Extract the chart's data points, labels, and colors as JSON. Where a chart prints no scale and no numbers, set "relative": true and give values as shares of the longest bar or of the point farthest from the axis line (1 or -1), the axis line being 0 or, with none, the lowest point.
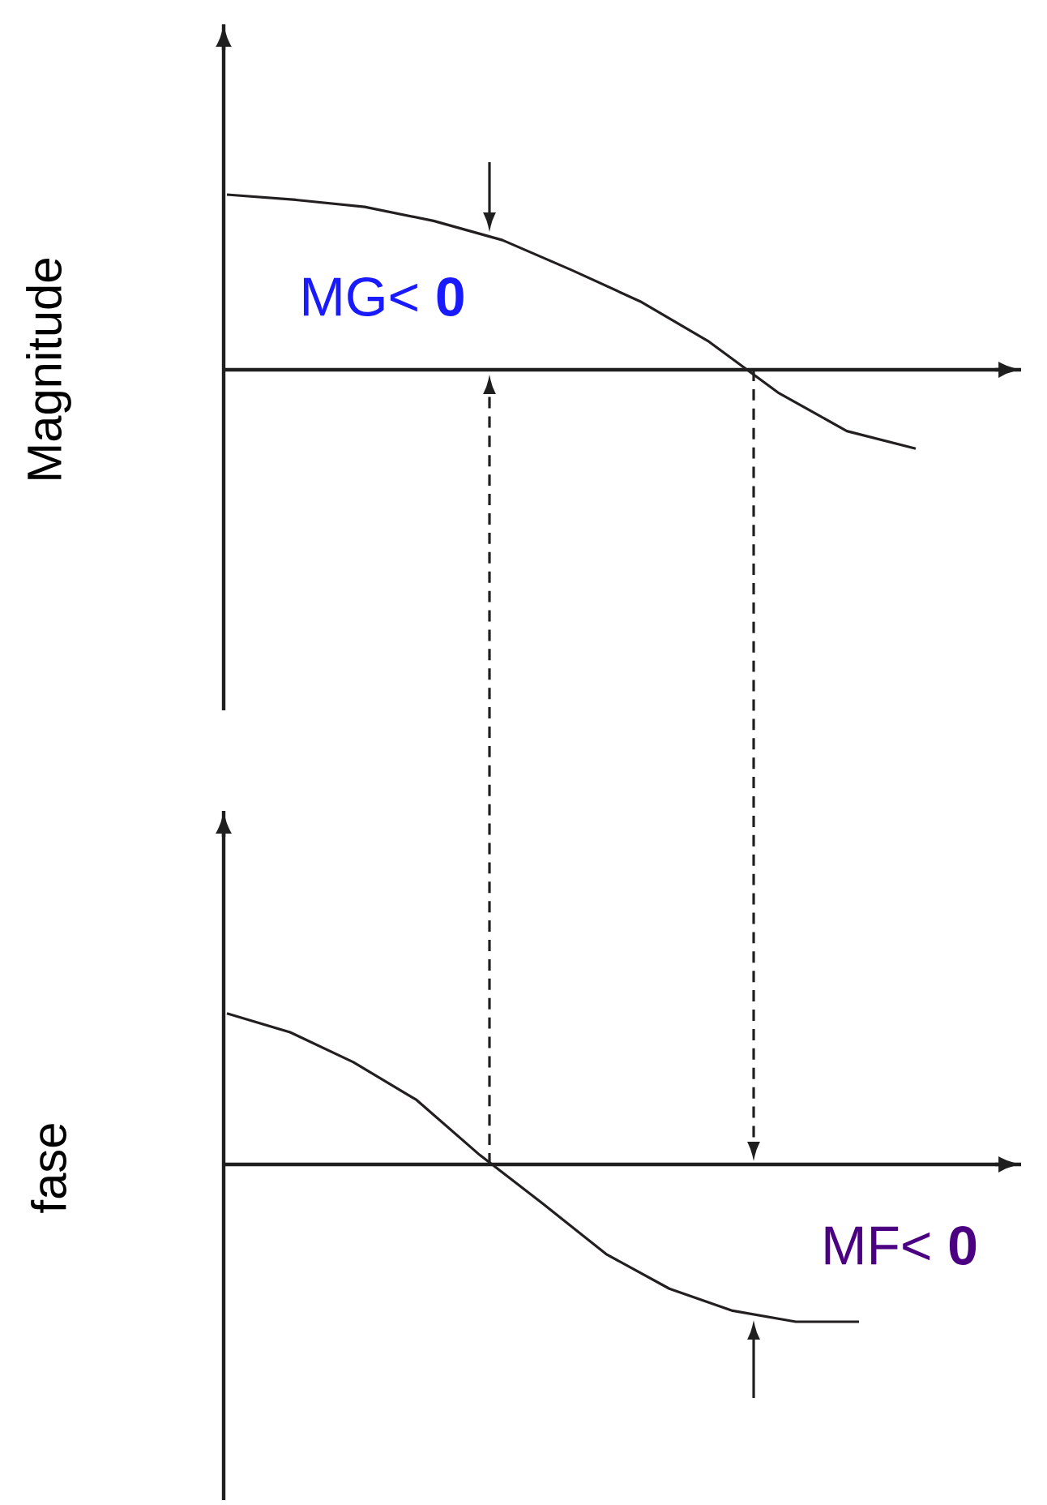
{
  "chart_data": [
    {
      "type": "line",
      "ylabel": "Magnitude",
      "categories": [
        null,
        null,
        null,
        null,
        null,
        null,
        null,
        null,
        null,
        null,
        null
      ],
      "relative": true,
      "tick_labels": false,
      "line_style": "solid",
      "series": [
        {
          "color": "#231f20",
          "values": [
            1,
            0.97,
            0.93,
            0.85,
            0.74,
            0.57,
            0.39,
            0.16,
            -0.13,
            -0.35,
            -0.45
          ]
        }
      ],
      "annotations": [
        "MG< **0**"
      ]
    },
    {
      "type": "line",
      "ylabel": "fase",
      "categories": [
        null,
        null,
        null,
        null,
        null,
        null,
        null,
        null,
        null,
        null,
        null
      ],
      "relative": true,
      "tick_labels": false,
      "line_style": "solid",
      "series": [
        {
          "color": "#231f20",
          "values": [
            0.96,
            0.84,
            0.65,
            0.41,
            0.06,
            -0.25,
            -0.57,
            -0.79,
            -0.93,
            -1,
            -1
          ]
        }
      ],
      "annotations": [
        "MF< **0**"
      ]
    }
  ]
}
